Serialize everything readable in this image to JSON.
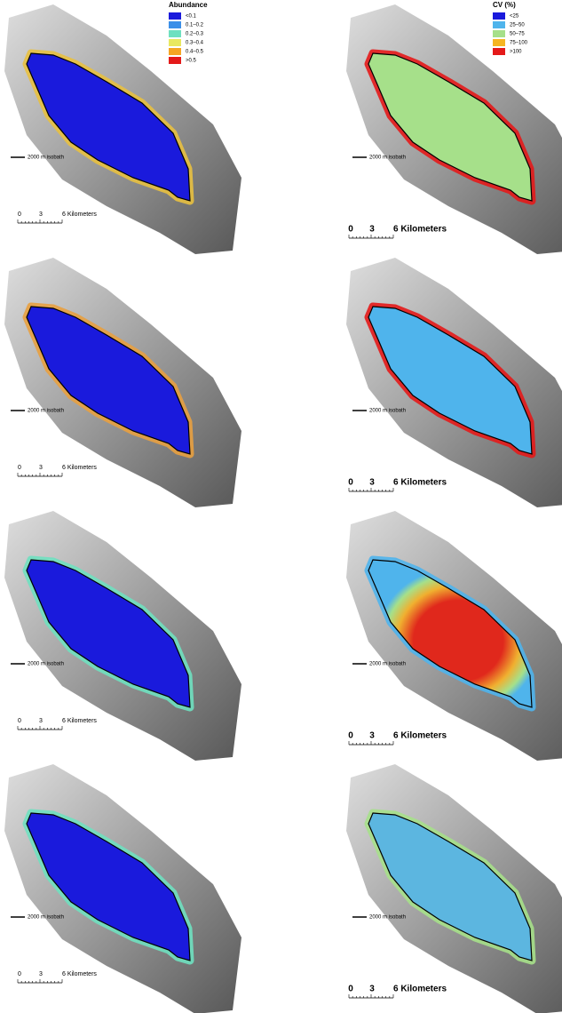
{
  "legends": [
    {
      "title": "Abundance",
      "items": [
        {
          "label": "<0.1",
          "color": "#1a1adc"
        },
        {
          "label": "0.1–0.2",
          "color": "#3b8fe8"
        },
        {
          "label": "0.2–0.3",
          "color": "#6fe0c0"
        },
        {
          "label": "0.3–0.4",
          "color": "#e8e860"
        },
        {
          "label": "0.4–0.5",
          "color": "#f5a623"
        },
        {
          "label": ">0.5",
          "color": "#e41a1a"
        }
      ]
    },
    {
      "title": "CV (%)",
      "items": [
        {
          "label": "<25",
          "color": "#1a1adc"
        },
        {
          "label": "25–50",
          "color": "#4fb4ec"
        },
        {
          "label": "50–75",
          "color": "#a6e08a"
        },
        {
          "label": "75–100",
          "color": "#f5b623"
        },
        {
          "label": ">100",
          "color": "#e41a1a"
        }
      ]
    }
  ],
  "panels": [
    {
      "isobath_label": "2000 m isobath",
      "scale_labels": [
        "0",
        "3",
        "6 Kilometers"
      ]
    },
    {
      "isobath_label": "2000 m isobath",
      "scale_labels": [
        "0",
        "3",
        "6 Kilometers"
      ]
    },
    {
      "isobath_label": "2000 m isobath",
      "scale_labels": [
        "0",
        "3",
        "6 Kilometers"
      ]
    },
    {
      "isobath_label": "2000 m isobath",
      "scale_labels": [
        "0",
        "3",
        "6 Kilometers"
      ]
    },
    {
      "isobath_label": "2000 m isobath",
      "scale_labels": [
        "0",
        "3",
        "6 Kilometers"
      ]
    },
    {
      "isobath_label": "2000 m isobath",
      "scale_labels": [
        "0",
        "3",
        "6 Kilometers"
      ]
    },
    {
      "isobath_label": "2000 m isobath",
      "scale_labels": [
        "0",
        "3",
        "6 Kilometers"
      ]
    },
    {
      "isobath_label": "2000 m isobath",
      "scale_labels": [
        "0",
        "3",
        "6 Kilometers"
      ]
    }
  ]
}
